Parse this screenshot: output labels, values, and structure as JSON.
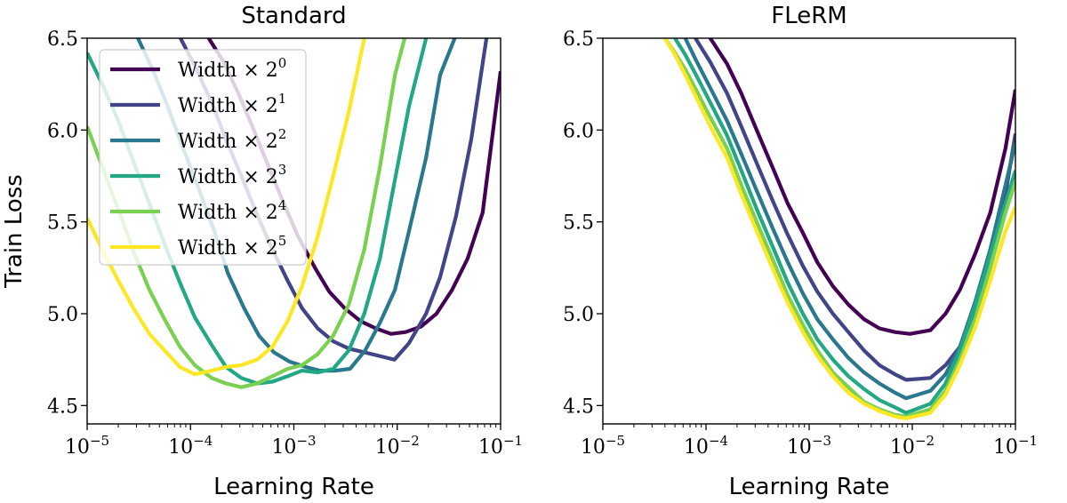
{
  "chart_data": [
    {
      "type": "line",
      "title": "Standard",
      "xlabel": "Learning Rate",
      "ylabel": "Train Loss",
      "xscale": "log",
      "xlim": [
        1e-05,
        0.1
      ],
      "ylim": [
        4.4,
        6.5
      ],
      "xticks": [
        {
          "value": 1e-05,
          "base": "10",
          "exp": "−5"
        },
        {
          "value": 0.0001,
          "base": "10",
          "exp": "−4"
        },
        {
          "value": 0.001,
          "base": "10",
          "exp": "−3"
        },
        {
          "value": 0.01,
          "base": "10",
          "exp": "−2"
        },
        {
          "value": 0.1,
          "base": "10",
          "exp": "−1"
        }
      ],
      "yticks": [
        {
          "value": 4.5,
          "label": "4.5"
        },
        {
          "value": 5.0,
          "label": "5.0"
        },
        {
          "value": 5.5,
          "label": "5.5"
        },
        {
          "value": 6.0,
          "label": "6.0"
        },
        {
          "value": 6.5,
          "label": "6.5"
        }
      ],
      "grid": false,
      "legend": {
        "position": "top-left"
      },
      "series": [
        {
          "name": "Width × 2",
          "exp": "0",
          "color": "#440154",
          "x": [
            0.00011,
            0.00015,
            0.00021,
            0.00029,
            0.00041,
            0.00057,
            0.0008,
            0.0011,
            0.0016,
            0.0022,
            0.0031,
            0.0044,
            0.0062,
            0.0087,
            0.012,
            0.017,
            0.024,
            0.034,
            0.048,
            0.067,
            0.1
          ],
          "y": [
            6.8,
            6.5,
            6.37,
            6.2,
            6.0,
            5.8,
            5.6,
            5.42,
            5.25,
            5.12,
            5.03,
            4.96,
            4.92,
            4.89,
            4.9,
            4.93,
            5.0,
            5.13,
            5.3,
            5.55,
            6.32
          ]
        },
        {
          "name": "Width × 2",
          "exp": "1",
          "color": "#414487",
          "x": [
            5.7e-05,
            8e-05,
            0.00011,
            0.00016,
            0.00022,
            0.00031,
            0.00044,
            0.00062,
            0.00087,
            0.0012,
            0.0017,
            0.0024,
            0.0034,
            0.0048,
            0.0067,
            0.0094,
            0.013,
            0.019,
            0.026,
            0.037,
            0.052,
            0.073,
            0.095
          ],
          "y": [
            6.8,
            6.5,
            6.35,
            6.15,
            5.95,
            5.75,
            5.54,
            5.35,
            5.18,
            5.03,
            4.92,
            4.85,
            4.81,
            4.79,
            4.77,
            4.75,
            4.84,
            5.0,
            5.2,
            5.53,
            5.95,
            6.5,
            6.8
          ]
        },
        {
          "name": "Width × 2",
          "exp": "2",
          "color": "#2a788e",
          "x": [
            2.2e-05,
            3.1e-05,
            4.3e-05,
            6e-05,
            8.5e-05,
            0.00012,
            0.00017,
            0.00023,
            0.00033,
            0.00046,
            0.00064,
            0.0009,
            0.0013,
            0.0018,
            0.0025,
            0.0035,
            0.0049,
            0.0068,
            0.0095,
            0.013,
            0.019,
            0.026,
            0.036,
            0.045
          ],
          "y": [
            6.8,
            6.5,
            6.33,
            6.13,
            5.9,
            5.68,
            5.45,
            5.22,
            5.03,
            4.88,
            4.79,
            4.74,
            4.71,
            4.69,
            4.69,
            4.7,
            4.8,
            4.95,
            5.13,
            5.45,
            5.85,
            6.3,
            6.5,
            6.8
          ]
        },
        {
          "name": "Width × 2",
          "exp": "3",
          "color": "#22a884",
          "x": [
            1e-05,
            1.4e-05,
            2e-05,
            2.8e-05,
            4e-05,
            5.6e-05,
            7.9e-05,
            0.00011,
            0.00016,
            0.00022,
            0.00031,
            0.00044,
            0.00062,
            0.00087,
            0.0012,
            0.0017,
            0.0024,
            0.0034,
            0.0048,
            0.0068,
            0.0095,
            0.013,
            0.019,
            0.023
          ],
          "y": [
            6.42,
            6.25,
            6.05,
            5.83,
            5.6,
            5.38,
            5.17,
            4.98,
            4.83,
            4.71,
            4.65,
            4.62,
            4.63,
            4.66,
            4.69,
            4.68,
            4.7,
            4.8,
            5.0,
            5.3,
            5.73,
            6.13,
            6.5,
            6.8
          ]
        },
        {
          "name": "Width × 2",
          "exp": "4",
          "color": "#7ad151",
          "x": [
            1e-05,
            1.4e-05,
            2e-05,
            2.8e-05,
            4e-05,
            5.6e-05,
            7.9e-05,
            0.00011,
            0.00016,
            0.00022,
            0.00031,
            0.00044,
            0.00062,
            0.00087,
            0.0012,
            0.0017,
            0.0024,
            0.0034,
            0.0048,
            0.0068,
            0.0095,
            0.0118
          ],
          "y": [
            6.02,
            5.8,
            5.57,
            5.34,
            5.13,
            4.97,
            4.82,
            4.72,
            4.65,
            4.62,
            4.6,
            4.62,
            4.66,
            4.7,
            4.72,
            4.78,
            4.88,
            5.05,
            5.35,
            5.8,
            6.3,
            6.5
          ]
        },
        {
          "name": "Width × 2",
          "exp": "5",
          "color": "#fde725",
          "x": [
            1e-05,
            1.4e-05,
            2e-05,
            2.8e-05,
            4e-05,
            5.6e-05,
            7.9e-05,
            0.00011,
            0.00016,
            0.00022,
            0.00031,
            0.00044,
            0.00062,
            0.00087,
            0.0012,
            0.0017,
            0.0024,
            0.0034,
            0.0048,
            0.0056
          ],
          "y": [
            5.52,
            5.35,
            5.18,
            5.03,
            4.89,
            4.8,
            4.71,
            4.67,
            4.69,
            4.71,
            4.72,
            4.75,
            4.82,
            4.96,
            5.15,
            5.42,
            5.75,
            6.1,
            6.5,
            6.8
          ]
        }
      ]
    },
    {
      "type": "line",
      "title": "FLeRM",
      "xlabel": "Learning Rate",
      "ylabel": "",
      "xscale": "log",
      "xlim": [
        1e-05,
        0.1
      ],
      "ylim": [
        4.4,
        6.5
      ],
      "xticks": [
        {
          "value": 1e-05,
          "base": "10",
          "exp": "−5"
        },
        {
          "value": 0.0001,
          "base": "10",
          "exp": "−4"
        },
        {
          "value": 0.001,
          "base": "10",
          "exp": "−3"
        },
        {
          "value": 0.01,
          "base": "10",
          "exp": "−2"
        },
        {
          "value": 0.1,
          "base": "10",
          "exp": "−1"
        }
      ],
      "yticks": [
        {
          "value": 4.5,
          "label": "4.5"
        },
        {
          "value": 5.0,
          "label": "5.0"
        },
        {
          "value": 5.5,
          "label": "5.5"
        },
        {
          "value": 6.0,
          "label": "6.0"
        },
        {
          "value": 6.5,
          "label": "6.5"
        }
      ],
      "grid": false,
      "series": [
        {
          "name": "Width × 2",
          "exp": "0",
          "color": "#440154",
          "x": [
            7.9e-05,
            0.00011,
            0.00016,
            0.00022,
            0.00031,
            0.00044,
            0.00062,
            0.00087,
            0.0012,
            0.0017,
            0.0024,
            0.0034,
            0.0048,
            0.0068,
            0.0095,
            0.015,
            0.021,
            0.029,
            0.041,
            0.057,
            0.08,
            0.1
          ],
          "y": [
            6.7,
            6.5,
            6.36,
            6.2,
            6.0,
            5.8,
            5.6,
            5.44,
            5.28,
            5.15,
            5.05,
            4.97,
            4.92,
            4.9,
            4.89,
            4.91,
            5.0,
            5.13,
            5.33,
            5.55,
            5.9,
            6.22
          ]
        },
        {
          "name": "Width × 2",
          "exp": "1",
          "color": "#414487",
          "x": [
            7.9e-05,
            0.00011,
            0.00016,
            0.00022,
            0.00031,
            0.00044,
            0.00062,
            0.00087,
            0.0012,
            0.0017,
            0.0024,
            0.0034,
            0.0048,
            0.0068,
            0.0087,
            0.015,
            0.021,
            0.029,
            0.041,
            0.057,
            0.08,
            0.1
          ],
          "y": [
            6.5,
            6.37,
            6.2,
            6.02,
            5.82,
            5.62,
            5.43,
            5.26,
            5.12,
            5.0,
            4.9,
            4.8,
            4.72,
            4.67,
            4.64,
            4.65,
            4.72,
            4.82,
            5.02,
            5.3,
            5.65,
            5.98
          ]
        },
        {
          "name": "Width × 2",
          "exp": "2",
          "color": "#2a788e",
          "x": [
            6.3e-05,
            8e-05,
            0.00011,
            0.00016,
            0.00022,
            0.00031,
            0.00044,
            0.00062,
            0.00087,
            0.0012,
            0.0017,
            0.0024,
            0.0034,
            0.0048,
            0.0068,
            0.0087,
            0.015,
            0.021,
            0.029,
            0.041,
            0.057,
            0.08,
            0.1
          ],
          "y": [
            6.5,
            6.38,
            6.23,
            6.05,
            5.87,
            5.67,
            5.47,
            5.28,
            5.11,
            4.97,
            4.86,
            4.76,
            4.68,
            4.62,
            4.57,
            4.54,
            4.58,
            4.67,
            4.82,
            5.07,
            5.35,
            5.7,
            5.93
          ]
        },
        {
          "name": "Width × 2",
          "exp": "3",
          "color": "#22a884",
          "x": [
            5e-05,
            6.3e-05,
            8e-05,
            0.00011,
            0.00016,
            0.00022,
            0.00031,
            0.00044,
            0.00062,
            0.00087,
            0.0012,
            0.0017,
            0.0024,
            0.0034,
            0.0048,
            0.0068,
            0.0087,
            0.015,
            0.021,
            0.029,
            0.041,
            0.057,
            0.08,
            0.1
          ],
          "y": [
            6.5,
            6.41,
            6.3,
            6.15,
            5.97,
            5.78,
            5.57,
            5.37,
            5.17,
            5.0,
            4.86,
            4.75,
            4.66,
            4.59,
            4.53,
            4.49,
            4.46,
            4.51,
            4.62,
            4.8,
            5.05,
            5.32,
            5.6,
            5.78
          ]
        },
        {
          "name": "Width × 2",
          "exp": "4",
          "color": "#7ad151",
          "x": [
            4e-05,
            5e-05,
            6.3e-05,
            8e-05,
            0.00011,
            0.00016,
            0.00022,
            0.00031,
            0.00044,
            0.00062,
            0.00087,
            0.0012,
            0.0017,
            0.0024,
            0.0034,
            0.0048,
            0.0068,
            0.0087,
            0.015,
            0.021,
            0.029,
            0.041,
            0.057,
            0.08,
            0.1
          ],
          "y": [
            6.5,
            6.42,
            6.33,
            6.22,
            6.07,
            5.9,
            5.7,
            5.5,
            5.3,
            5.1,
            4.94,
            4.8,
            4.68,
            4.6,
            4.52,
            4.48,
            4.45,
            4.44,
            4.48,
            4.58,
            4.75,
            4.98,
            5.25,
            5.55,
            5.72
          ]
        },
        {
          "name": "Width × 2",
          "exp": "5",
          "color": "#fde725",
          "x": [
            4e-05,
            5e-05,
            6.3e-05,
            8e-05,
            0.00011,
            0.00016,
            0.00022,
            0.00031,
            0.00044,
            0.00062,
            0.00087,
            0.0012,
            0.0017,
            0.0024,
            0.0034,
            0.0048,
            0.0068,
            0.0087,
            0.015,
            0.021,
            0.029,
            0.041,
            0.057,
            0.08,
            0.1
          ],
          "y": [
            6.5,
            6.41,
            6.3,
            6.18,
            6.02,
            5.85,
            5.65,
            5.45,
            5.25,
            5.06,
            4.9,
            4.77,
            4.66,
            4.57,
            4.51,
            4.47,
            4.44,
            4.43,
            4.46,
            4.56,
            4.72,
            4.93,
            5.18,
            5.45,
            5.58
          ]
        }
      ]
    }
  ]
}
